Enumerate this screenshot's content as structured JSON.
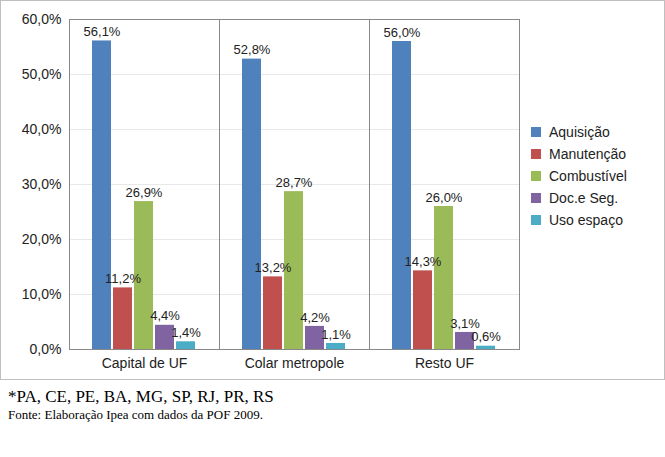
{
  "chart_data": {
    "type": "bar",
    "categories": [
      "Capital de UF",
      "Colar metropole",
      "Resto UF"
    ],
    "series": [
      {
        "name": "Aquisição",
        "color": "#4f81bd",
        "values": [
          56.1,
          52.8,
          56.0
        ],
        "value_labels": [
          "56,1%",
          "52,8%",
          "56,0%"
        ]
      },
      {
        "name": "Manutenção",
        "color": "#c0504d",
        "values": [
          11.2,
          13.2,
          14.3
        ],
        "value_labels": [
          "11,2%",
          "13,2%",
          "14,3%"
        ]
      },
      {
        "name": "Combustível",
        "color": "#9bbb59",
        "values": [
          26.9,
          28.7,
          26.0
        ],
        "value_labels": [
          "26,9%",
          "28,7%",
          "26,0%"
        ]
      },
      {
        "name": "Doc.e Seg.",
        "color": "#8064a2",
        "values": [
          4.4,
          4.2,
          3.1
        ],
        "value_labels": [
          "4,4%",
          "4,2%",
          "3,1%"
        ]
      },
      {
        "name": "Uso espaço",
        "color": "#4bacc6",
        "values": [
          1.4,
          1.1,
          0.6
        ],
        "value_labels": [
          "1,4%",
          "1,1%",
          "0,6%"
        ]
      }
    ],
    "ylim": [
      0,
      60
    ],
    "yticks": [
      {
        "value": 0,
        "label": "0,0%"
      },
      {
        "value": 10,
        "label": "10,0%"
      },
      {
        "value": 20,
        "label": "20,0%"
      },
      {
        "value": 30,
        "label": "30,0%"
      },
      {
        "value": 40,
        "label": "40,0%"
      },
      {
        "value": 50,
        "label": "50,0%"
      },
      {
        "value": 60,
        "label": "60,0%"
      }
    ],
    "grid": true,
    "legend": "right",
    "data_labels": true,
    "annotations": [
      "*PA, CE, PE, BA, MG, SP, RJ, PR, RS",
      "Fonte: Elaboração Ipea com dados da POF 2009."
    ]
  }
}
